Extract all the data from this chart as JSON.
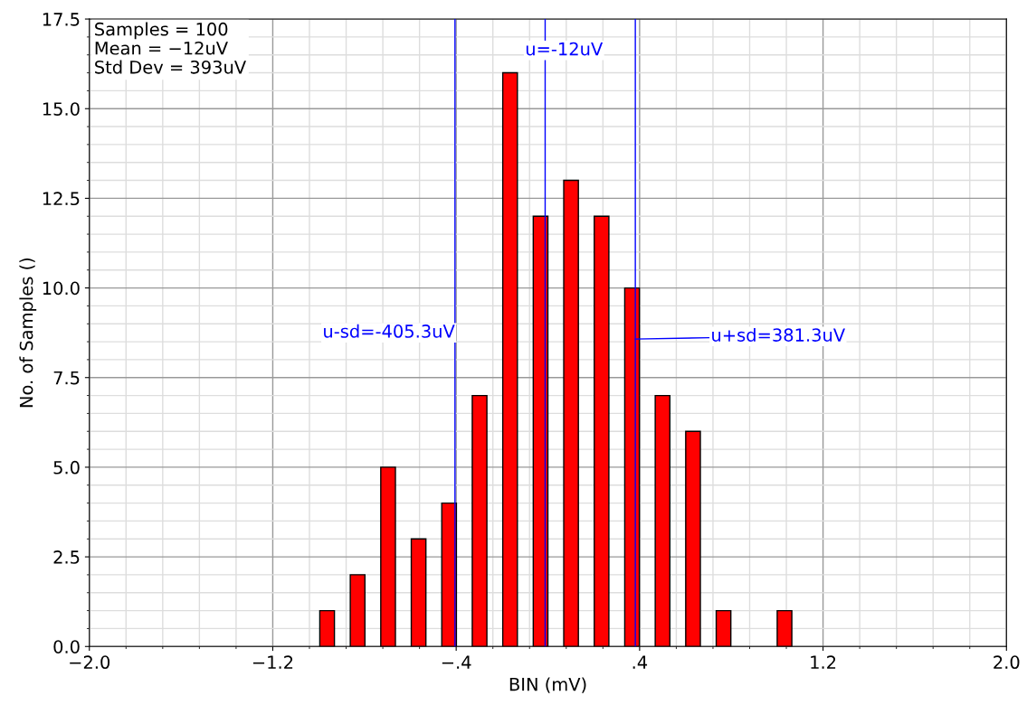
{
  "chart_data": {
    "type": "bar",
    "x": [
      -0.963,
      -0.83,
      -0.697,
      -0.564,
      -0.431,
      -0.298,
      -0.165,
      -0.032,
      0.101,
      0.234,
      0.367,
      0.5,
      0.633,
      0.766,
      1.032
    ],
    "series": [
      {
        "color": "#ff0000",
        "values": [
          1,
          2,
          5,
          3,
          4,
          7,
          16,
          12,
          13,
          12,
          10,
          7,
          6,
          1,
          1
        ]
      }
    ],
    "xlabel": "BIN (mV)",
    "ylabel": "No. of Samples ()",
    "xlim": [
      -2.0,
      2.0
    ],
    "ylim": [
      0,
      17.5
    ],
    "xticks": [
      {
        "value": -2.0,
        "label": "−2.0"
      },
      {
        "value": -1.2,
        "label": "−1.2"
      },
      {
        "value": -0.4,
        "label": "−.4"
      },
      {
        "value": 0.4,
        "label": ".4"
      },
      {
        "value": 1.2,
        "label": "1.2"
      },
      {
        "value": 2.0,
        "label": "2.0"
      }
    ],
    "yticks": [
      {
        "value": 0,
        "label": "0.0"
      },
      {
        "value": 2.5,
        "label": "2.5"
      },
      {
        "value": 5,
        "label": "5.0"
      },
      {
        "value": 7.5,
        "label": "7.5"
      },
      {
        "value": 10,
        "label": "10.0"
      },
      {
        "value": 12.5,
        "label": "12.5"
      },
      {
        "value": 15,
        "label": "15.0"
      },
      {
        "value": 17.5,
        "label": "17.5"
      }
    ],
    "grid": true,
    "ref_lines": [
      {
        "axis": "x",
        "value": -0.4053,
        "label": "u-sd=-405.3uV",
        "color": "#0000ff"
      },
      {
        "axis": "x",
        "value": -0.012,
        "label": "u=-12uV",
        "color": "#0000ff"
      },
      {
        "axis": "x",
        "value": 0.3813,
        "label": "u+sd=381.3uV",
        "color": "#0000ff"
      }
    ],
    "annotations": [
      "Samples = 100\nMean = −12uV\nStd Dev = 393uV"
    ]
  }
}
